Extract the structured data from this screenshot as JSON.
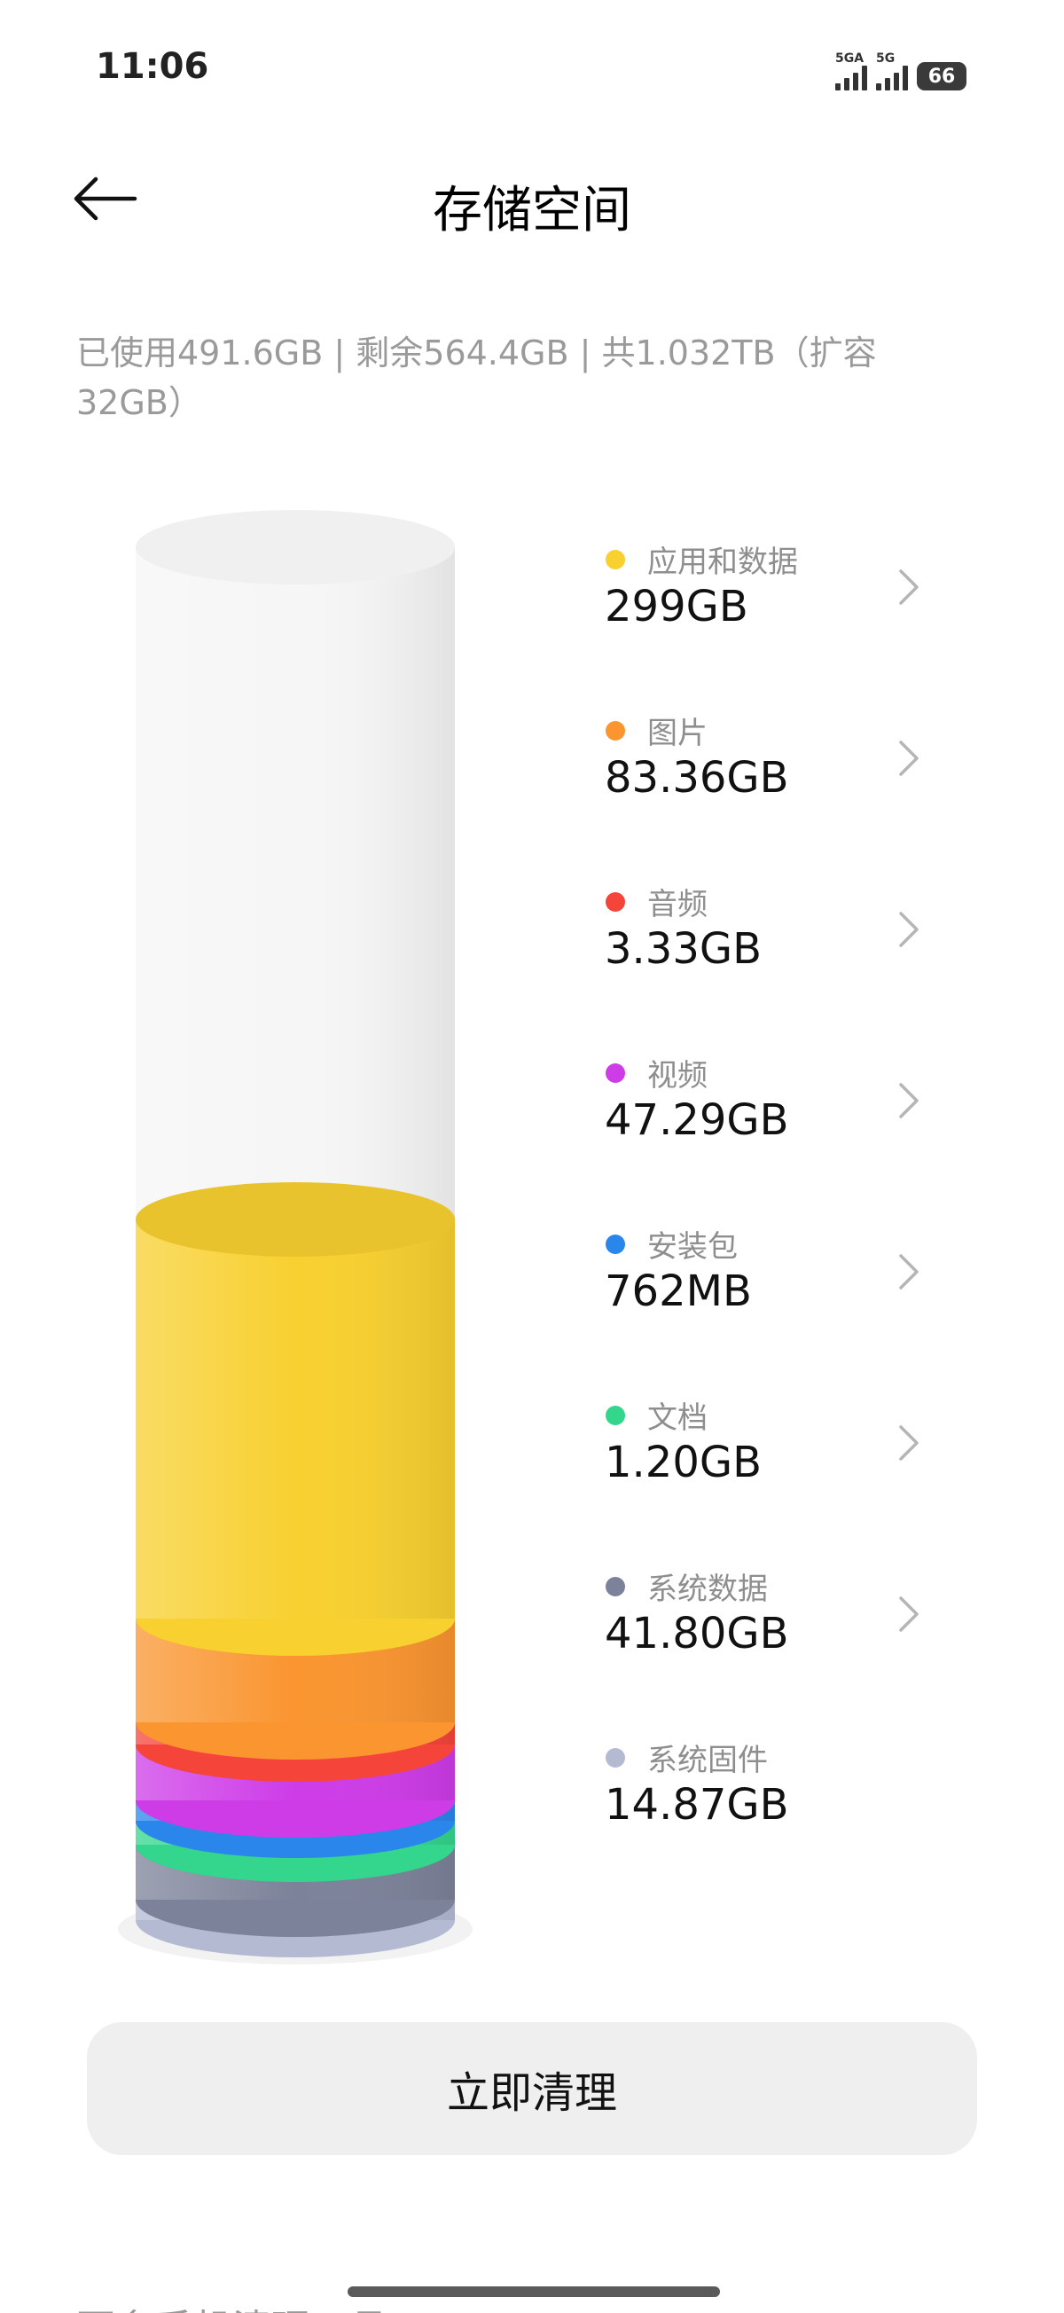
{
  "status_bar": {
    "time": "11:06",
    "network_1": "5GA",
    "network_2": "5G",
    "battery": "66"
  },
  "header": {
    "title": "存储空间",
    "back_icon": "arrow-left-icon"
  },
  "summary": "已使用491.6GB | 剩余564.4GB | 共1.032TB（扩容32GB）",
  "categories": [
    {
      "label": "应用和数据",
      "value": "299GB",
      "color": "#F8D030",
      "has_chevron": true
    },
    {
      "label": "图片",
      "value": "83.36GB",
      "color": "#FA9530",
      "has_chevron": true
    },
    {
      "label": "音频",
      "value": "3.33GB",
      "color": "#F5453B",
      "has_chevron": true
    },
    {
      "label": "视频",
      "value": "47.29GB",
      "color": "#CE3CE8",
      "has_chevron": true
    },
    {
      "label": "安装包",
      "value": "762MB",
      "color": "#2B86EB",
      "has_chevron": true
    },
    {
      "label": "文档",
      "value": "1.20GB",
      "color": "#33D68C",
      "has_chevron": true
    },
    {
      "label": "系统数据",
      "value": "41.80GB",
      "color": "#7C8299",
      "has_chevron": true
    },
    {
      "label": "系统固件",
      "value": "14.87GB",
      "color": "#B5BAD3",
      "has_chevron": false
    }
  ],
  "actions": {
    "clean_now": "立即清理"
  },
  "more_tools": "更多手机清理工具"
}
